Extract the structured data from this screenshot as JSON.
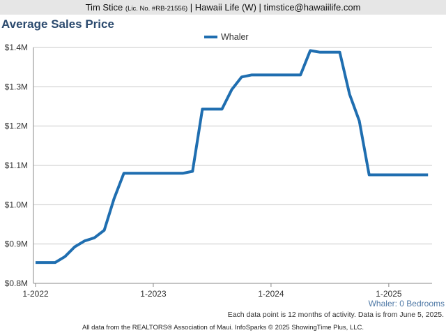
{
  "header": {
    "agent_name": "Tim Stice",
    "license": "(Lic. No. #RB-21556)",
    "rest": "| Hawaii Life (W) | timstice@hawaiilife.com"
  },
  "title": "Average Sales Price",
  "series_note": "Whaler: 0 Bedrooms",
  "note": "Each data point is 12 months of activity. Data is from June 5, 2025.",
  "footer": "All data from the REALTORS® Association of Maui. InfoSparks © 2025 ShowingTime Plus, LLC.",
  "colors": {
    "series": "#1f6eb0",
    "grid": "#c8c8c8",
    "axis": "#888888"
  },
  "chart_data": {
    "type": "line",
    "title": "Average Sales Price",
    "ylim": [
      800000,
      1400000
    ],
    "y_ticks": [
      {
        "value": 800000,
        "label": "$0.8M"
      },
      {
        "value": 900000,
        "label": "$0.9M"
      },
      {
        "value": 1000000,
        "label": "$1.0M"
      },
      {
        "value": 1100000,
        "label": "$1.1M"
      },
      {
        "value": 1200000,
        "label": "$1.2M"
      },
      {
        "value": 1300000,
        "label": "$1.3M"
      },
      {
        "value": 1400000,
        "label": "$1.4M"
      }
    ],
    "x_ticks": [
      "1-2022",
      "1-2023",
      "1-2024",
      "1-2025"
    ],
    "x_range": [
      "2022-01",
      "2025-05"
    ],
    "grid": true,
    "legend_position": "top-center",
    "series": [
      {
        "name": "Whaler",
        "x": [
          "2022-01",
          "2022-02",
          "2022-03",
          "2022-04",
          "2022-05",
          "2022-06",
          "2022-07",
          "2022-08",
          "2022-09",
          "2022-10",
          "2022-11",
          "2022-12",
          "2023-01",
          "2023-02",
          "2023-03",
          "2023-04",
          "2023-05",
          "2023-06",
          "2023-07",
          "2023-08",
          "2023-09",
          "2023-10",
          "2023-11",
          "2023-12",
          "2024-01",
          "2024-02",
          "2024-03",
          "2024-04",
          "2024-05",
          "2024-06",
          "2024-07",
          "2024-08",
          "2024-09",
          "2024-10",
          "2024-11",
          "2024-12",
          "2025-01",
          "2025-02",
          "2025-03",
          "2025-04",
          "2025-05"
        ],
        "values": [
          853000,
          853000,
          853000,
          868000,
          893000,
          908000,
          916000,
          935000,
          1015000,
          1080000,
          1080000,
          1080000,
          1080000,
          1080000,
          1080000,
          1080000,
          1085000,
          1243000,
          1243000,
          1243000,
          1293000,
          1325000,
          1330000,
          1330000,
          1330000,
          1330000,
          1330000,
          1330000,
          1392000,
          1388000,
          1388000,
          1388000,
          1281000,
          1213000,
          1076000,
          1076000,
          1076000,
          1076000,
          1076000,
          1076000,
          1076000
        ]
      }
    ]
  }
}
